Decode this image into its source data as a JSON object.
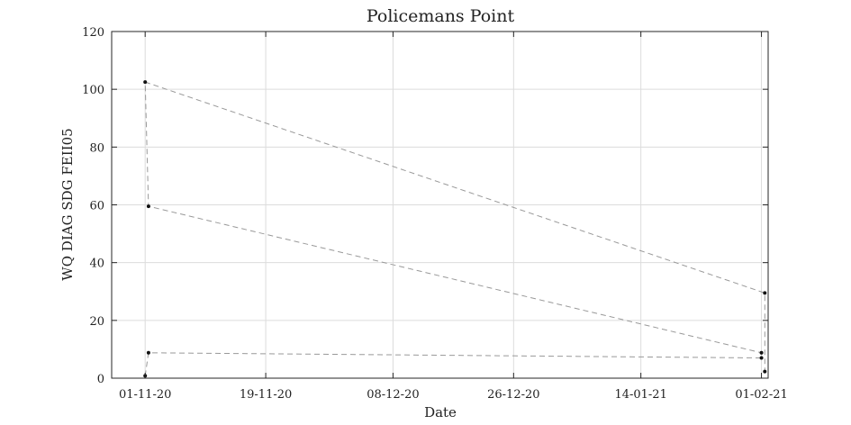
{
  "chart_data": {
    "type": "line",
    "title": "Policemans Point",
    "xlabel": "Date",
    "ylabel": "WQ DIAG SDG FEII05",
    "x_is_date": true,
    "x_range": [
      "2020-10-27",
      "2021-02-02"
    ],
    "ylim": [
      0,
      120
    ],
    "x_ticks": [
      {
        "date": "2020-11-01",
        "label": "01-11-20"
      },
      {
        "date": "2020-11-19",
        "label": "19-11-20"
      },
      {
        "date": "2020-12-08",
        "label": "08-12-20"
      },
      {
        "date": "2020-12-26",
        "label": "26-12-20"
      },
      {
        "date": "2021-01-14",
        "label": "14-01-21"
      },
      {
        "date": "2021-02-01",
        "label": "01-02-21"
      }
    ],
    "y_ticks": [
      0,
      20,
      40,
      60,
      80,
      100,
      120
    ],
    "grid": true,
    "line_style": "dashed",
    "line_color": "#999999",
    "marker_color": "#111111",
    "series": [
      {
        "points": [
          {
            "x": "2020-11-01T00:00",
            "y": 0.8
          },
          {
            "x": "2020-11-01T12:00",
            "y": 8.8
          },
          {
            "x": "2021-02-01T00:00",
            "y": 7.0
          },
          {
            "x": "2021-02-01T00:00",
            "y": 8.8
          },
          {
            "x": "2020-11-01T12:00",
            "y": 59.5
          },
          {
            "x": "2020-11-01T00:00",
            "y": 102.5
          },
          {
            "x": "2021-02-01T12:00",
            "y": 29.5
          },
          {
            "x": "2021-02-01T12:00",
            "y": 2.3
          }
        ]
      }
    ]
  }
}
